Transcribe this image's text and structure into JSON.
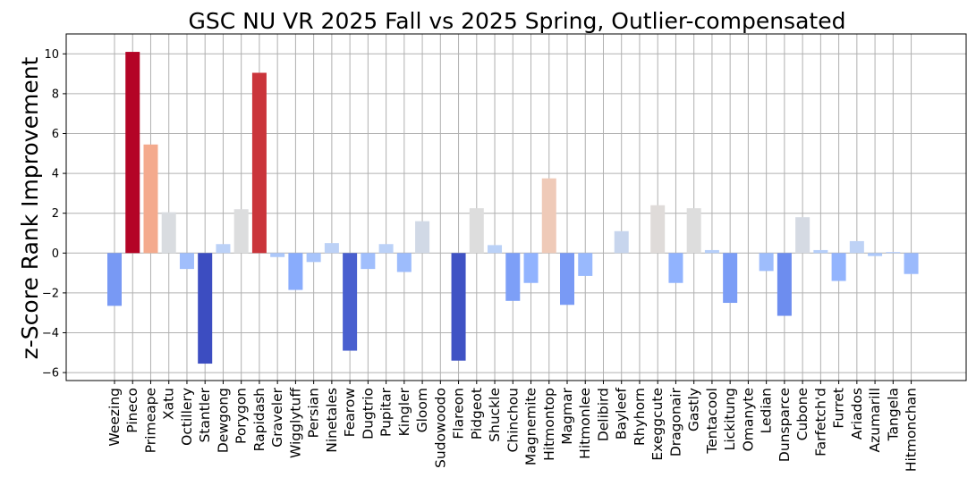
{
  "chart_data": {
    "type": "bar",
    "title": "GSC NU VR 2025 Fall vs 2025 Spring, Outlier-compensated",
    "xlabel": "",
    "ylabel": "z-Score Rank Improvement",
    "ylim": [
      -6.4,
      11.0
    ],
    "yticks": [
      -6,
      -4,
      -2,
      0,
      2,
      4,
      6,
      8,
      10
    ],
    "grid": true,
    "colormap": "coolwarm",
    "color_range": [
      -5.6,
      10.1
    ],
    "categories": [
      "Weezing",
      "Pineco",
      "Primeape",
      "Xatu",
      "Octillery",
      "Stantler",
      "Dewgong",
      "Porygon",
      "Rapidash",
      "Graveler",
      "Wigglytuff",
      "Persian",
      "Ninetales",
      "Fearow",
      "Dugtrio",
      "Pupitar",
      "Kingler",
      "Gloom",
      "Sudowoodo",
      "Flareon",
      "Pidgeot",
      "Shuckle",
      "Chinchou",
      "Magnemite",
      "Hitmontop",
      "Magmar",
      "Hitmonlee",
      "Delibird",
      "Bayleef",
      "Rhyhorn",
      "Exeggcute",
      "Dragonair",
      "Gastly",
      "Tentacool",
      "Lickitung",
      "Omanyte",
      "Ledian",
      "Dunsparce",
      "Cubone",
      "Farfetch'd",
      "Furret",
      "Ariados",
      "Azumarill",
      "Tangela",
      "Hitmonchan"
    ],
    "values": [
      -2.65,
      10.1,
      5.45,
      2.05,
      -0.8,
      -5.55,
      0.45,
      2.2,
      9.05,
      -0.2,
      -1.85,
      -0.45,
      0.5,
      -4.9,
      -0.8,
      0.45,
      -0.95,
      1.6,
      0.0,
      -5.4,
      2.25,
      0.4,
      -2.4,
      -1.5,
      3.75,
      -2.6,
      -1.15,
      0.0,
      1.1,
      0.0,
      2.4,
      -1.5,
      2.25,
      0.15,
      -2.5,
      0.0,
      -0.9,
      -3.15,
      1.8,
      0.15,
      -1.4,
      0.6,
      -0.15,
      0.05,
      -1.05
    ]
  }
}
